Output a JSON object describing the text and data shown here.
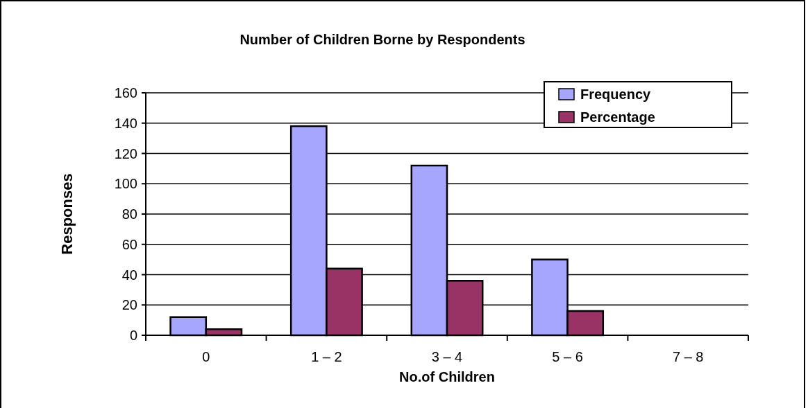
{
  "chart_data": {
    "type": "bar",
    "title": "Number of Children Borne by Respondents",
    "xlabel": "No.of Children",
    "ylabel": "Responses",
    "categories": [
      "0",
      "1 – 2",
      "3 – 4",
      "5 – 6",
      "7 – 8"
    ],
    "series": [
      {
        "name": "Frequency",
        "color": "#a6a6ff",
        "values": [
          12,
          138,
          112,
          50,
          0
        ]
      },
      {
        "name": "Percentage",
        "color": "#993366",
        "values": [
          4,
          44,
          36,
          16,
          0
        ]
      }
    ],
    "ylim": [
      0,
      160
    ],
    "yticks": [
      0,
      20,
      40,
      60,
      80,
      100,
      120,
      140,
      160
    ],
    "grid": "y",
    "legend": "top right"
  }
}
